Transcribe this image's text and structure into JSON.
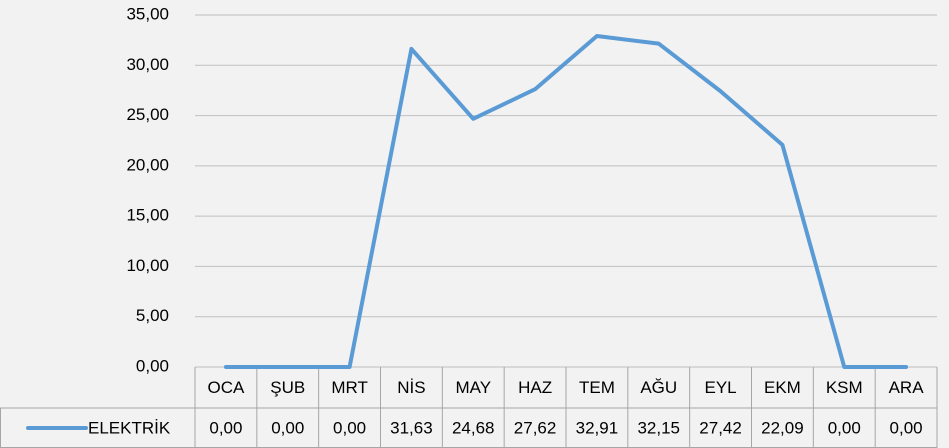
{
  "chart_data": {
    "type": "line",
    "categories": [
      "OCA",
      "ŞUB",
      "MRT",
      "NİS",
      "MAY",
      "HAZ",
      "TEM",
      "AĞU",
      "EYL",
      "EKM",
      "KSM",
      "ARA"
    ],
    "series": [
      {
        "name": "ELEKTRİK",
        "color": "#5b9bd5",
        "values": [
          0,
          0,
          0,
          31.63,
          24.68,
          27.62,
          32.91,
          32.15,
          27.42,
          22.09,
          0,
          0
        ],
        "value_labels": [
          "0,00",
          "0,00",
          "0,00",
          "31,63",
          "24,68",
          "27,62",
          "32,91",
          "32,15",
          "27,42",
          "22,09",
          "0,00",
          "0,00"
        ]
      }
    ],
    "ylim": [
      0,
      35
    ],
    "yticks": [
      {
        "value": 0,
        "label": "0,00"
      },
      {
        "value": 5,
        "label": "5,00"
      },
      {
        "value": 10,
        "label": "10,00"
      },
      {
        "value": 15,
        "label": "15,00"
      },
      {
        "value": 20,
        "label": "20,00"
      },
      {
        "value": 25,
        "label": "25,00"
      },
      {
        "value": 30,
        "label": "30,00"
      },
      {
        "value": 35,
        "label": "35,00"
      }
    ],
    "grid": true
  }
}
